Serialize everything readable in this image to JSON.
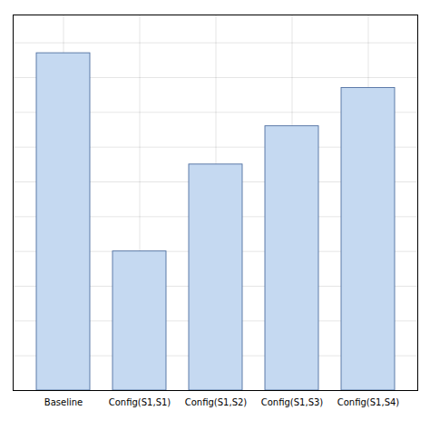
{
  "chart_data": {
    "type": "bar",
    "categories": [
      "Baseline",
      "Config(S1,S1)",
      "Config(S1,S2)",
      "Config(S1,S3)",
      "Config(S1,S4)"
    ],
    "values": [
      0.97,
      0.4,
      0.65,
      0.76,
      0.87
    ],
    "color": "#C5D9F1",
    "ylim": [
      0,
      1.08
    ],
    "yticks": [
      0,
      0.1,
      0.2,
      0.3,
      0.4,
      0.5,
      0.6,
      0.7,
      0.8,
      0.9,
      1.0
    ],
    "grid": true,
    "tick_labels": "x"
  }
}
